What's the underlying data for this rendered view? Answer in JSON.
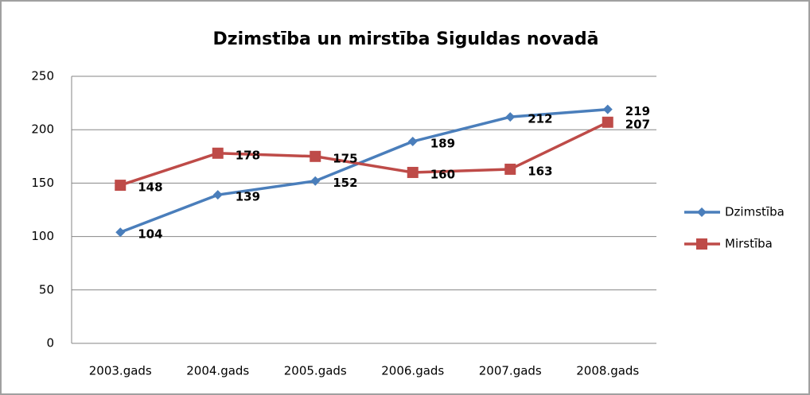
{
  "chart_data": {
    "type": "line",
    "title": "Dzimstība un mirstība Siguldas novadā",
    "categories": [
      "2003.gads",
      "2004.gads",
      "2005.gads",
      "2006.gads",
      "2007.gads",
      "2008.gads"
    ],
    "series": [
      {
        "name": "Dzimstība",
        "color": "#4a7ebb",
        "marker": "diamond",
        "values": [
          104,
          139,
          152,
          189,
          212,
          219
        ]
      },
      {
        "name": "Mirstība",
        "color": "#be4b48",
        "marker": "square",
        "values": [
          148,
          178,
          175,
          160,
          163,
          207
        ]
      }
    ],
    "ylim": [
      0,
      250
    ],
    "yticks": [
      0,
      50,
      100,
      150,
      200,
      250
    ],
    "grid": true,
    "legend": "right"
  }
}
